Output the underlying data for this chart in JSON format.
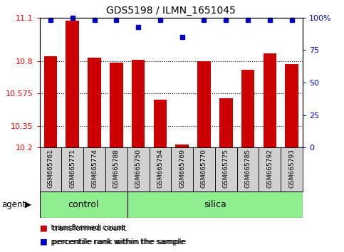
{
  "title": "GDS5198 / ILMN_1651045",
  "samples": [
    "GSM665761",
    "GSM665771",
    "GSM665774",
    "GSM665788",
    "GSM665750",
    "GSM665754",
    "GSM665769",
    "GSM665770",
    "GSM665775",
    "GSM665785",
    "GSM665792",
    "GSM665793"
  ],
  "bar_values": [
    10.83,
    11.08,
    10.82,
    10.79,
    10.81,
    10.53,
    10.22,
    10.8,
    10.54,
    10.74,
    10.85,
    10.78
  ],
  "percentile_values": [
    98,
    100,
    98,
    98,
    93,
    98,
    85,
    98,
    98,
    98,
    98,
    98
  ],
  "bar_color": "#cc0000",
  "percentile_color": "#0000cc",
  "ymin": 10.2,
  "ymax": 11.1,
  "yticks": [
    10.2,
    10.35,
    10.575,
    10.8,
    11.1
  ],
  "ytick_labels": [
    "10.2",
    "10.35",
    "10.575",
    "10.8",
    "11.1"
  ],
  "right_yticks": [
    0,
    25,
    50,
    75,
    100
  ],
  "right_ytick_labels": [
    "0",
    "25",
    "50",
    "75",
    "100%"
  ],
  "n_control": 4,
  "n_silica": 8,
  "control_label": "control",
  "silica_label": "silica",
  "agent_label": "agent",
  "legend_red_label": "transformed count",
  "legend_blue_label": "percentile rank within the sample",
  "bar_width": 0.6,
  "dotted_lines": [
    10.35,
    10.575,
    10.8,
    11.1
  ]
}
